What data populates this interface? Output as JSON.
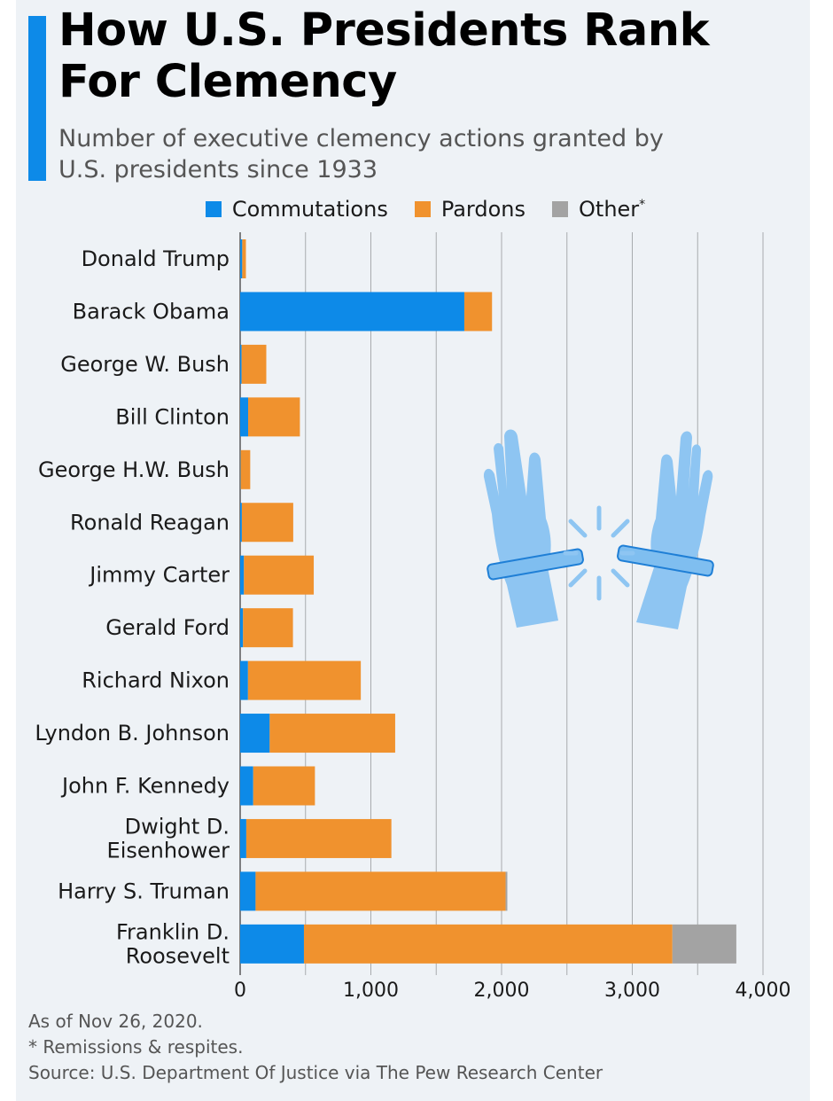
{
  "title": "How U.S. Presidents Rank For Clemency",
  "subtitle": "Number of executive clemency actions granted by U.S. presidents since 1933",
  "legend": {
    "commutations": "Commutations",
    "pardons": "Pardons",
    "other": "Other",
    "other_mark": "*"
  },
  "colors": {
    "commutations": "#0d8ae8",
    "pardons": "#f0922e",
    "other": "#a3a3a3",
    "accent": "#0d8ae8",
    "illustration": "#8ec5f2"
  },
  "notes": {
    "date": "As of Nov 26, 2020.",
    "footnote": "* Remissions & respites.",
    "source": "Source: U.S. Department Of Justice via The Pew Research Center"
  },
  "illustration": "hands-breaking-handcuffs-icon",
  "chart_data": {
    "type": "bar",
    "orientation": "horizontal",
    "stacked": true,
    "title": "How U.S. Presidents Rank For Clemency",
    "xlabel": "",
    "ylabel": "",
    "xlim": [
      0,
      4000
    ],
    "xticks": [
      0,
      1000,
      2000,
      3000,
      4000
    ],
    "xtick_labels": [
      "0",
      "1,000",
      "2,000",
      "3,000",
      "4,000"
    ],
    "grid": true,
    "legend_position": "top",
    "categories": [
      "Donald Trump",
      "Barack Obama",
      "George W. Bush",
      "Bill Clinton",
      "George H.W. Bush",
      "Ronald Reagan",
      "Jimmy Carter",
      "Gerald Ford",
      "Richard Nixon",
      "Lyndon B. Johnson",
      "John F. Kennedy",
      "Dwight D. Eisenhower",
      "Harry S. Truman",
      "Franklin D. Roosevelt"
    ],
    "category_lines": [
      [
        "Donald Trump"
      ],
      [
        "Barack Obama"
      ],
      [
        "George W. Bush"
      ],
      [
        "Bill Clinton"
      ],
      [
        "George H.W. Bush"
      ],
      [
        "Ronald Reagan"
      ],
      [
        "Jimmy Carter"
      ],
      [
        "Gerald Ford"
      ],
      [
        "Richard Nixon"
      ],
      [
        "Lyndon B. Johnson"
      ],
      [
        "John F. Kennedy"
      ],
      [
        "Dwight D.",
        "Eisenhower"
      ],
      [
        "Harry S. Truman"
      ],
      [
        "Franklin D.",
        "Roosevelt"
      ]
    ],
    "series": [
      {
        "name": "Commutations",
        "values": [
          16,
          1715,
          11,
          61,
          3,
          13,
          29,
          22,
          60,
          226,
          100,
          47,
          118,
          488
        ]
      },
      {
        "name": "Pardons",
        "values": [
          28,
          212,
          189,
          396,
          74,
          393,
          534,
          382,
          863,
          960,
          472,
          1110,
          1913,
          2819
        ]
      },
      {
        "name": "Other",
        "values": [
          0,
          0,
          0,
          0,
          0,
          0,
          0,
          0,
          0,
          0,
          0,
          0,
          13,
          489
        ]
      }
    ]
  }
}
